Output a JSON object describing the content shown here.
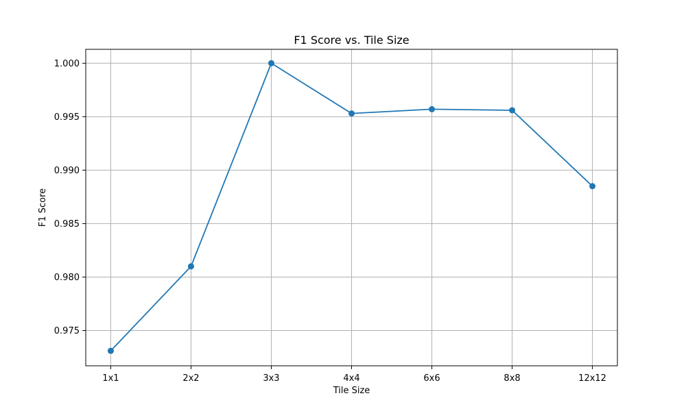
{
  "chart_data": {
    "type": "line",
    "title": "F1 Score vs. Tile Size",
    "xlabel": "Tile Size",
    "ylabel": "F1 Score",
    "categories": [
      "1x1",
      "2x2",
      "3x3",
      "4x4",
      "6x6",
      "8x8",
      "12x12"
    ],
    "series": [
      {
        "values": [
          0.9731,
          0.981,
          1.0,
          0.9953,
          0.9957,
          0.9956,
          0.9885
        ]
      }
    ],
    "ylim": [
      0.9717,
      1.0013
    ],
    "yticks": [
      0.975,
      0.98,
      0.985,
      0.99,
      0.995,
      1.0
    ],
    "ytick_labels": [
      "0.975",
      "0.980",
      "0.985",
      "0.990",
      "0.995",
      "1.000"
    ],
    "grid": true,
    "marker": "circle",
    "colors": {
      "line": "#1f77b4",
      "grid": "#b0b0b0",
      "axes": "#000000"
    }
  }
}
